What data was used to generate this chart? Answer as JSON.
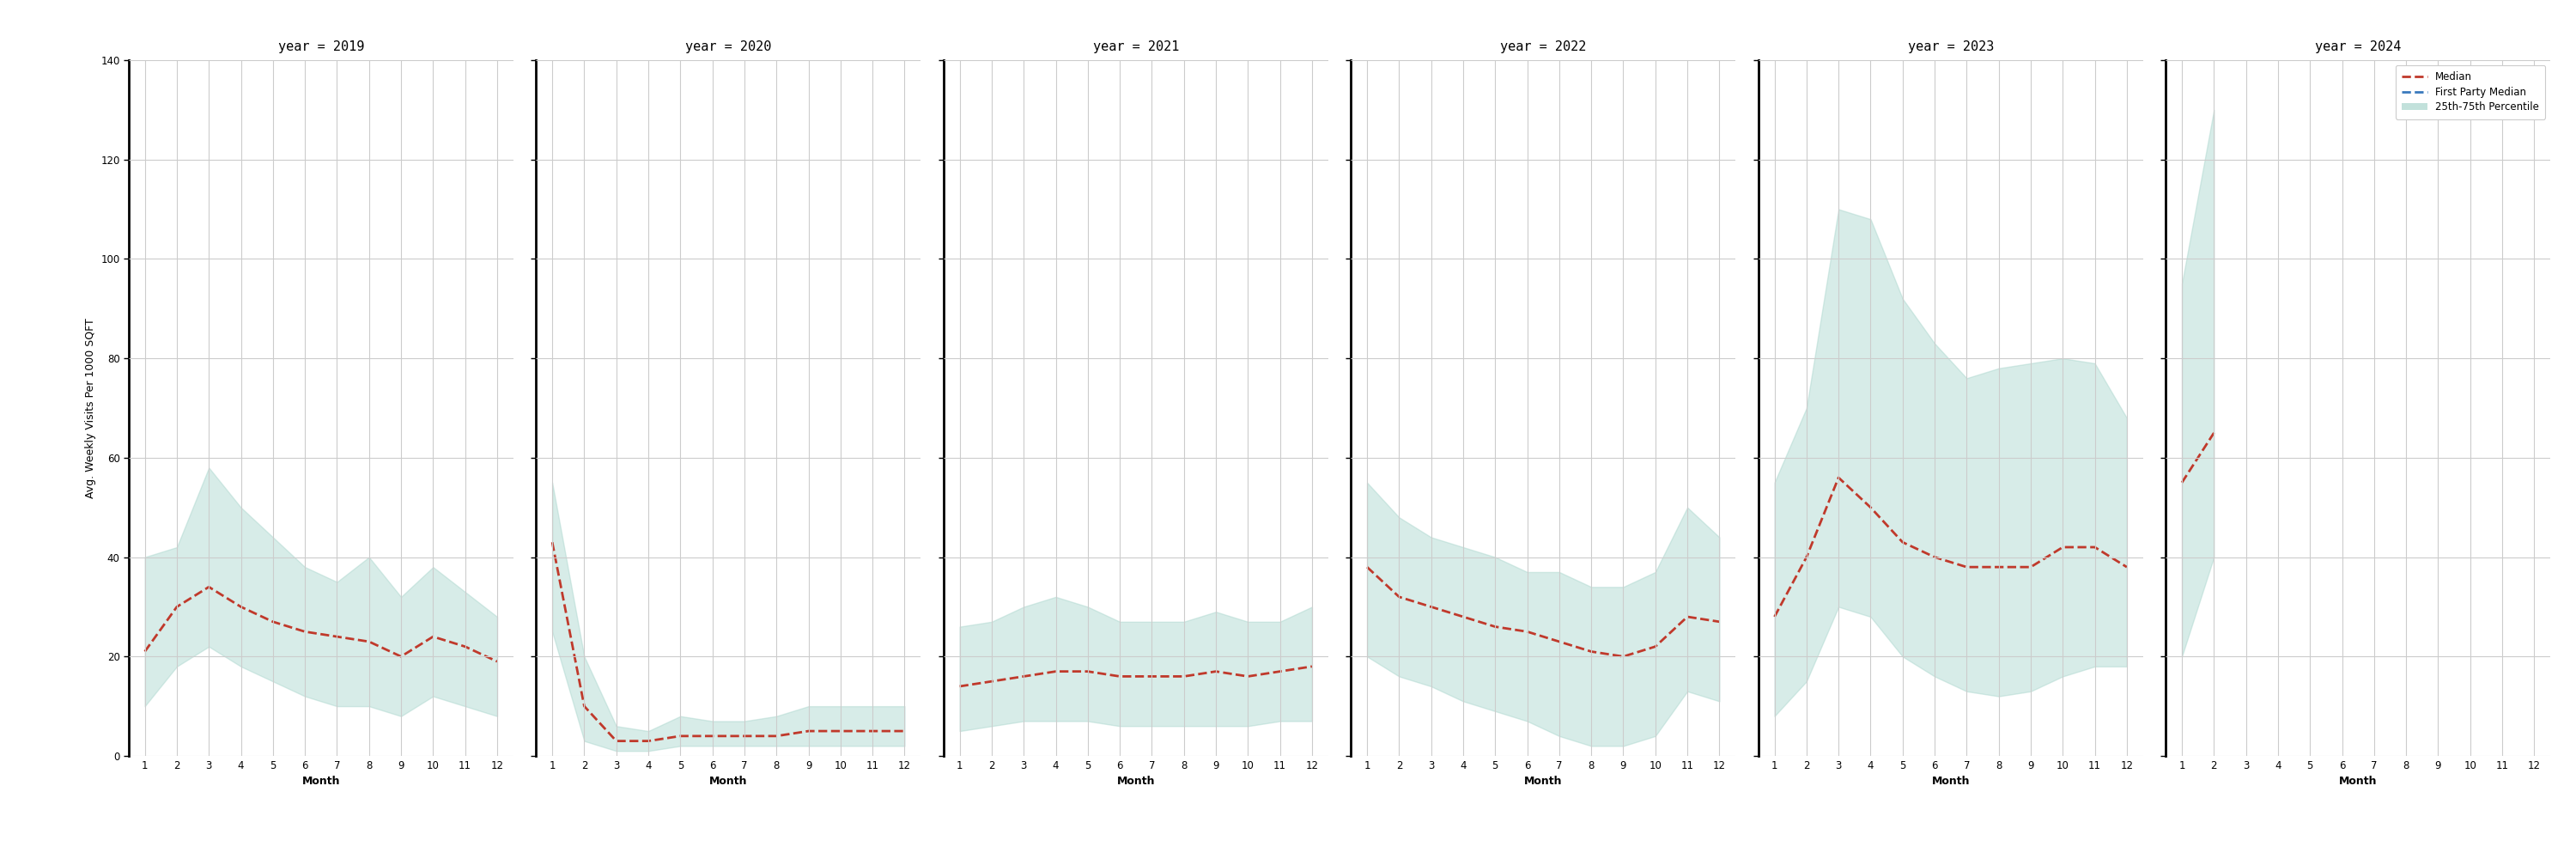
{
  "years": [
    2019,
    2020,
    2021,
    2022,
    2023,
    2024
  ],
  "months": [
    1,
    2,
    3,
    4,
    5,
    6,
    7,
    8,
    9,
    10,
    11,
    12
  ],
  "median": {
    "2019": [
      21,
      30,
      34,
      30,
      27,
      25,
      24,
      23,
      20,
      24,
      22,
      19
    ],
    "2020": [
      43,
      10,
      3,
      3,
      4,
      4,
      4,
      4,
      5,
      5,
      5,
      5
    ],
    "2021": [
      14,
      15,
      16,
      17,
      17,
      16,
      16,
      16,
      17,
      16,
      17,
      18
    ],
    "2022": [
      38,
      32,
      30,
      28,
      26,
      25,
      23,
      21,
      20,
      22,
      28,
      27
    ],
    "2023": [
      28,
      40,
      56,
      50,
      43,
      40,
      38,
      38,
      38,
      42,
      42,
      38
    ],
    "2024": [
      55,
      65,
      null,
      null,
      null,
      null,
      null,
      null,
      null,
      null,
      null,
      null
    ]
  },
  "p25": {
    "2019": [
      10,
      18,
      22,
      18,
      15,
      12,
      10,
      10,
      8,
      12,
      10,
      8
    ],
    "2020": [
      25,
      3,
      1,
      1,
      2,
      2,
      2,
      2,
      2,
      2,
      2,
      2
    ],
    "2021": [
      5,
      6,
      7,
      7,
      7,
      6,
      6,
      6,
      6,
      6,
      7,
      7
    ],
    "2022": [
      20,
      16,
      14,
      11,
      9,
      7,
      4,
      2,
      2,
      4,
      13,
      11
    ],
    "2023": [
      8,
      15,
      30,
      28,
      20,
      16,
      13,
      12,
      13,
      16,
      18,
      18
    ],
    "2024": [
      20,
      40,
      null,
      null,
      null,
      null,
      null,
      null,
      null,
      null,
      null,
      null
    ]
  },
  "p75": {
    "2019": [
      40,
      42,
      58,
      50,
      44,
      38,
      35,
      40,
      32,
      38,
      33,
      28
    ],
    "2020": [
      55,
      20,
      6,
      5,
      8,
      7,
      7,
      8,
      10,
      10,
      10,
      10
    ],
    "2021": [
      26,
      27,
      30,
      32,
      30,
      27,
      27,
      27,
      29,
      27,
      27,
      30
    ],
    "2022": [
      55,
      48,
      44,
      42,
      40,
      37,
      37,
      34,
      34,
      37,
      50,
      44
    ],
    "2023": [
      55,
      70,
      110,
      108,
      92,
      83,
      76,
      78,
      79,
      80,
      79,
      68
    ],
    "2024": [
      95,
      130,
      null,
      null,
      null,
      null,
      null,
      null,
      null,
      null,
      null,
      null
    ]
  },
  "ylim": [
    0,
    140
  ],
  "yticks": [
    0,
    20,
    40,
    60,
    80,
    100,
    120,
    140
  ],
  "fill_color": "#a8d5cc",
  "fill_alpha": 0.45,
  "median_color": "#c0392b",
  "first_party_color": "#3a7abd",
  "background_color": "#ffffff",
  "grid_color": "#cccccc",
  "ylabel": "Avg. Weekly Visits Per 1000 SQFT",
  "xlabel": "Month",
  "title_fontsize": 11,
  "axis_fontsize": 9,
  "tick_fontsize": 8.5
}
